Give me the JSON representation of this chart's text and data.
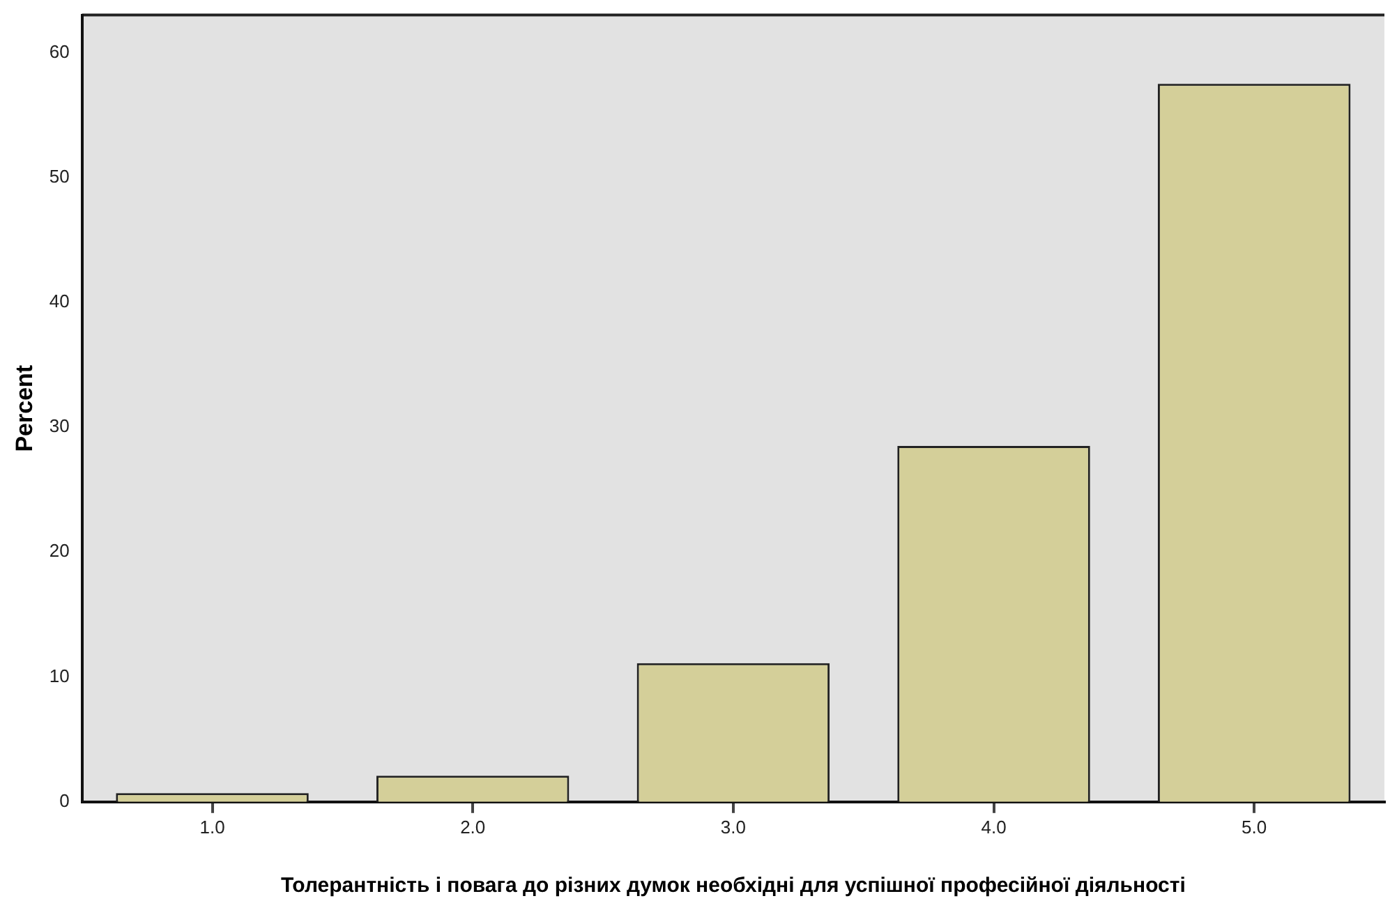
{
  "chart_data": {
    "type": "bar",
    "xlabel": "Толерантність і повага до різних думок необхідні для успішної професійної діяльності",
    "ylabel": "Percent",
    "categories": [
      "1.0",
      "2.0",
      "3.0",
      "4.0",
      "5.0"
    ],
    "values": [
      0.7,
      2.1,
      11.1,
      28.5,
      57.5
    ],
    "color": "#d4cf99",
    "ylim": [
      0,
      63
    ],
    "yticks": [
      0,
      10,
      20,
      30,
      40,
      50,
      60
    ],
    "grid": false,
    "legend": false
  }
}
